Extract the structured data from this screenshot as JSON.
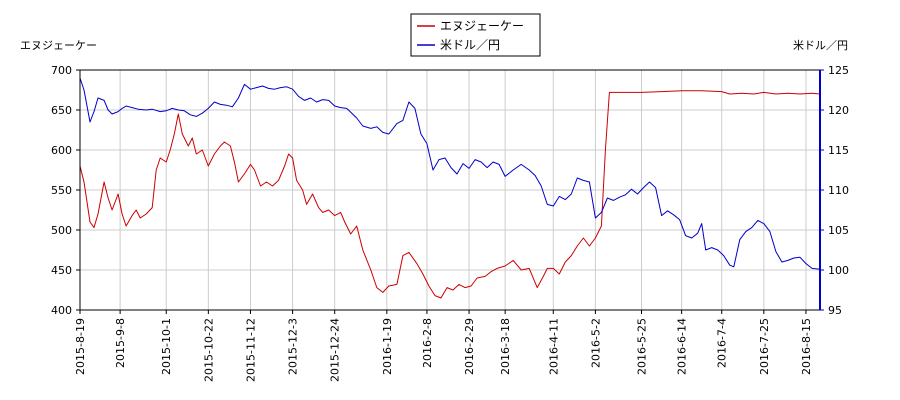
{
  "chart_data": {
    "type": "line",
    "legend_position": "top-center",
    "grid": true,
    "left_axis": {
      "label": "エヌジェーケー",
      "ylim": [
        400,
        700
      ],
      "ticks": [
        400,
        450,
        500,
        550,
        600,
        650,
        700
      ],
      "color": "#000000"
    },
    "right_axis": {
      "label": "米ドル／円",
      "ylim": [
        95,
        125
      ],
      "ticks": [
        95,
        100,
        105,
        110,
        115,
        120,
        125
      ],
      "color": "#0000cc"
    },
    "x_range": [
      "2015-08-19",
      "2016-08-22"
    ],
    "x_ticks": [
      "2015-8-19",
      "2015-9-8",
      "2015-10-1",
      "2015-10-22",
      "2015-11-12",
      "2015-12-3",
      "2015-12-24",
      "2016-1-19",
      "2016-2-8",
      "2016-2-29",
      "2016-3-18",
      "2016-4-11",
      "2016-5-2",
      "2016-5-25",
      "2016-6-14",
      "2016-7-4",
      "2016-7-25",
      "2016-8-15"
    ],
    "series": [
      {
        "name": "エヌジェーケー",
        "axis": "left",
        "color": "#cc0000",
        "points": [
          [
            "2015-08-19",
            580
          ],
          [
            "2015-08-21",
            560
          ],
          [
            "2015-08-24",
            510
          ],
          [
            "2015-08-26",
            503
          ],
          [
            "2015-08-28",
            520
          ],
          [
            "2015-08-31",
            560
          ],
          [
            "2015-09-02",
            540
          ],
          [
            "2015-09-04",
            525
          ],
          [
            "2015-09-07",
            545
          ],
          [
            "2015-09-09",
            520
          ],
          [
            "2015-09-11",
            505
          ],
          [
            "2015-09-14",
            518
          ],
          [
            "2015-09-16",
            525
          ],
          [
            "2015-09-18",
            515
          ],
          [
            "2015-09-21",
            520
          ],
          [
            "2015-09-24",
            528
          ],
          [
            "2015-09-26",
            575
          ],
          [
            "2015-09-28",
            590
          ],
          [
            "2015-10-01",
            585
          ],
          [
            "2015-10-03",
            600
          ],
          [
            "2015-10-05",
            620
          ],
          [
            "2015-10-07",
            645
          ],
          [
            "2015-10-09",
            620
          ],
          [
            "2015-10-12",
            605
          ],
          [
            "2015-10-14",
            615
          ],
          [
            "2015-10-16",
            595
          ],
          [
            "2015-10-19",
            600
          ],
          [
            "2015-10-22",
            580
          ],
          [
            "2015-10-25",
            595
          ],
          [
            "2015-10-28",
            605
          ],
          [
            "2015-10-30",
            610
          ],
          [
            "2015-11-02",
            605
          ],
          [
            "2015-11-04",
            585
          ],
          [
            "2015-11-06",
            560
          ],
          [
            "2015-11-09",
            570
          ],
          [
            "2015-11-12",
            582
          ],
          [
            "2015-11-14",
            575
          ],
          [
            "2015-11-17",
            555
          ],
          [
            "2015-11-20",
            560
          ],
          [
            "2015-11-23",
            555
          ],
          [
            "2015-11-26",
            562
          ],
          [
            "2015-11-29",
            580
          ],
          [
            "2015-12-01",
            595
          ],
          [
            "2015-12-03",
            590
          ],
          [
            "2015-12-05",
            562
          ],
          [
            "2015-12-08",
            550
          ],
          [
            "2015-12-10",
            532
          ],
          [
            "2015-12-13",
            545
          ],
          [
            "2015-12-16",
            528
          ],
          [
            "2015-12-18",
            522
          ],
          [
            "2015-12-21",
            525
          ],
          [
            "2015-12-24",
            518
          ],
          [
            "2015-12-27",
            522
          ],
          [
            "2015-12-29",
            510
          ],
          [
            "2016-01-01",
            495
          ],
          [
            "2016-01-04",
            505
          ],
          [
            "2016-01-07",
            475
          ],
          [
            "2016-01-11",
            450
          ],
          [
            "2016-01-14",
            428
          ],
          [
            "2016-01-17",
            422
          ],
          [
            "2016-01-20",
            430
          ],
          [
            "2016-01-24",
            432
          ],
          [
            "2016-01-27",
            468
          ],
          [
            "2016-01-30",
            472
          ],
          [
            "2016-02-03",
            458
          ],
          [
            "2016-02-06",
            445
          ],
          [
            "2016-02-09",
            430
          ],
          [
            "2016-02-12",
            418
          ],
          [
            "2016-02-15",
            415
          ],
          [
            "2016-02-18",
            428
          ],
          [
            "2016-02-21",
            425
          ],
          [
            "2016-02-24",
            432
          ],
          [
            "2016-02-27",
            428
          ],
          [
            "2016-03-01",
            430
          ],
          [
            "2016-03-04",
            440
          ],
          [
            "2016-03-08",
            442
          ],
          [
            "2016-03-11",
            448
          ],
          [
            "2016-03-14",
            452
          ],
          [
            "2016-03-18",
            455
          ],
          [
            "2016-03-22",
            462
          ],
          [
            "2016-03-26",
            450
          ],
          [
            "2016-03-30",
            452
          ],
          [
            "2016-04-03",
            428
          ],
          [
            "2016-04-06",
            442
          ],
          [
            "2016-04-08",
            452
          ],
          [
            "2016-04-11",
            452
          ],
          [
            "2016-04-14",
            445
          ],
          [
            "2016-04-17",
            460
          ],
          [
            "2016-04-20",
            468
          ],
          [
            "2016-04-23",
            480
          ],
          [
            "2016-04-26",
            490
          ],
          [
            "2016-04-29",
            480
          ],
          [
            "2016-05-02",
            490
          ],
          [
            "2016-05-05",
            505
          ],
          [
            "2016-05-07",
            600
          ],
          [
            "2016-05-09",
            672
          ],
          [
            "2016-05-15",
            672
          ],
          [
            "2016-05-25",
            672
          ],
          [
            "2016-06-04",
            673
          ],
          [
            "2016-06-14",
            674
          ],
          [
            "2016-06-24",
            674
          ],
          [
            "2016-07-04",
            673
          ],
          [
            "2016-07-08",
            670
          ],
          [
            "2016-07-14",
            671
          ],
          [
            "2016-07-20",
            670
          ],
          [
            "2016-07-25",
            672
          ],
          [
            "2016-07-31",
            670
          ],
          [
            "2016-08-06",
            671
          ],
          [
            "2016-08-12",
            670
          ],
          [
            "2016-08-18",
            671
          ],
          [
            "2016-08-22",
            670
          ]
        ]
      },
      {
        "name": "米ドル／円",
        "axis": "right",
        "color": "#0000cc",
        "points": [
          [
            "2015-08-19",
            124.0
          ],
          [
            "2015-08-21",
            122.5
          ],
          [
            "2015-08-24",
            118.5
          ],
          [
            "2015-08-26",
            119.8
          ],
          [
            "2015-08-28",
            121.5
          ],
          [
            "2015-08-31",
            121.2
          ],
          [
            "2015-09-02",
            120.0
          ],
          [
            "2015-09-04",
            119.5
          ],
          [
            "2015-09-07",
            119.8
          ],
          [
            "2015-09-09",
            120.2
          ],
          [
            "2015-09-11",
            120.5
          ],
          [
            "2015-09-14",
            120.3
          ],
          [
            "2015-09-17",
            120.1
          ],
          [
            "2015-09-21",
            120.0
          ],
          [
            "2015-09-24",
            120.1
          ],
          [
            "2015-09-28",
            119.8
          ],
          [
            "2015-10-01",
            119.9
          ],
          [
            "2015-10-04",
            120.2
          ],
          [
            "2015-10-07",
            120.0
          ],
          [
            "2015-10-10",
            119.9
          ],
          [
            "2015-10-13",
            119.4
          ],
          [
            "2015-10-16",
            119.2
          ],
          [
            "2015-10-19",
            119.6
          ],
          [
            "2015-10-22",
            120.2
          ],
          [
            "2015-10-25",
            121.0
          ],
          [
            "2015-10-28",
            120.7
          ],
          [
            "2015-10-31",
            120.6
          ],
          [
            "2015-11-03",
            120.4
          ],
          [
            "2015-11-06",
            121.5
          ],
          [
            "2015-11-09",
            123.2
          ],
          [
            "2015-11-12",
            122.6
          ],
          [
            "2015-11-15",
            122.8
          ],
          [
            "2015-11-18",
            123.0
          ],
          [
            "2015-11-21",
            122.7
          ],
          [
            "2015-11-24",
            122.6
          ],
          [
            "2015-11-27",
            122.8
          ],
          [
            "2015-11-30",
            122.9
          ],
          [
            "2015-12-03",
            122.6
          ],
          [
            "2015-12-06",
            121.7
          ],
          [
            "2015-12-09",
            121.2
          ],
          [
            "2015-12-12",
            121.5
          ],
          [
            "2015-12-15",
            121.0
          ],
          [
            "2015-12-18",
            121.3
          ],
          [
            "2015-12-21",
            121.2
          ],
          [
            "2015-12-24",
            120.5
          ],
          [
            "2015-12-27",
            120.3
          ],
          [
            "2015-12-30",
            120.2
          ],
          [
            "2016-01-04",
            119.0
          ],
          [
            "2016-01-07",
            118.0
          ],
          [
            "2016-01-11",
            117.7
          ],
          [
            "2016-01-14",
            117.9
          ],
          [
            "2016-01-17",
            117.2
          ],
          [
            "2016-01-20",
            117.0
          ],
          [
            "2016-01-24",
            118.3
          ],
          [
            "2016-01-27",
            118.7
          ],
          [
            "2016-01-30",
            121.0
          ],
          [
            "2016-02-02",
            120.2
          ],
          [
            "2016-02-05",
            117.0
          ],
          [
            "2016-02-08",
            115.8
          ],
          [
            "2016-02-11",
            112.5
          ],
          [
            "2016-02-14",
            113.8
          ],
          [
            "2016-02-17",
            114.0
          ],
          [
            "2016-02-20",
            112.8
          ],
          [
            "2016-02-23",
            112.0
          ],
          [
            "2016-02-26",
            113.3
          ],
          [
            "2016-02-29",
            112.7
          ],
          [
            "2016-03-03",
            113.8
          ],
          [
            "2016-03-06",
            113.5
          ],
          [
            "2016-03-09",
            112.8
          ],
          [
            "2016-03-12",
            113.5
          ],
          [
            "2016-03-15",
            113.2
          ],
          [
            "2016-03-18",
            111.7
          ],
          [
            "2016-03-22",
            112.5
          ],
          [
            "2016-03-26",
            113.2
          ],
          [
            "2016-03-30",
            112.5
          ],
          [
            "2016-04-02",
            111.8
          ],
          [
            "2016-04-05",
            110.5
          ],
          [
            "2016-04-08",
            108.2
          ],
          [
            "2016-04-11",
            108.0
          ],
          [
            "2016-04-14",
            109.2
          ],
          [
            "2016-04-17",
            108.8
          ],
          [
            "2016-04-20",
            109.5
          ],
          [
            "2016-04-23",
            111.5
          ],
          [
            "2016-04-26",
            111.2
          ],
          [
            "2016-04-29",
            111.0
          ],
          [
            "2016-05-02",
            106.5
          ],
          [
            "2016-05-05",
            107.2
          ],
          [
            "2016-05-08",
            109.0
          ],
          [
            "2016-05-11",
            108.7
          ],
          [
            "2016-05-14",
            109.1
          ],
          [
            "2016-05-17",
            109.4
          ],
          [
            "2016-05-20",
            110.1
          ],
          [
            "2016-05-23",
            109.5
          ],
          [
            "2016-05-26",
            110.3
          ],
          [
            "2016-05-29",
            111.0
          ],
          [
            "2016-06-01",
            110.3
          ],
          [
            "2016-06-04",
            106.8
          ],
          [
            "2016-06-07",
            107.4
          ],
          [
            "2016-06-10",
            106.9
          ],
          [
            "2016-06-13",
            106.3
          ],
          [
            "2016-06-16",
            104.3
          ],
          [
            "2016-06-19",
            104.0
          ],
          [
            "2016-06-22",
            104.6
          ],
          [
            "2016-06-24",
            105.8
          ],
          [
            "2016-06-26",
            102.5
          ],
          [
            "2016-06-29",
            102.8
          ],
          [
            "2016-07-02",
            102.5
          ],
          [
            "2016-07-05",
            101.8
          ],
          [
            "2016-07-08",
            100.6
          ],
          [
            "2016-07-10",
            100.4
          ],
          [
            "2016-07-13",
            103.8
          ],
          [
            "2016-07-16",
            104.8
          ],
          [
            "2016-07-19",
            105.3
          ],
          [
            "2016-07-22",
            106.2
          ],
          [
            "2016-07-25",
            105.8
          ],
          [
            "2016-07-28",
            104.8
          ],
          [
            "2016-07-31",
            102.3
          ],
          [
            "2016-08-03",
            101.0
          ],
          [
            "2016-08-06",
            101.2
          ],
          [
            "2016-08-09",
            101.5
          ],
          [
            "2016-08-12",
            101.6
          ],
          [
            "2016-08-15",
            100.8
          ],
          [
            "2016-08-18",
            100.2
          ],
          [
            "2016-08-22",
            100.1
          ]
        ]
      }
    ]
  }
}
